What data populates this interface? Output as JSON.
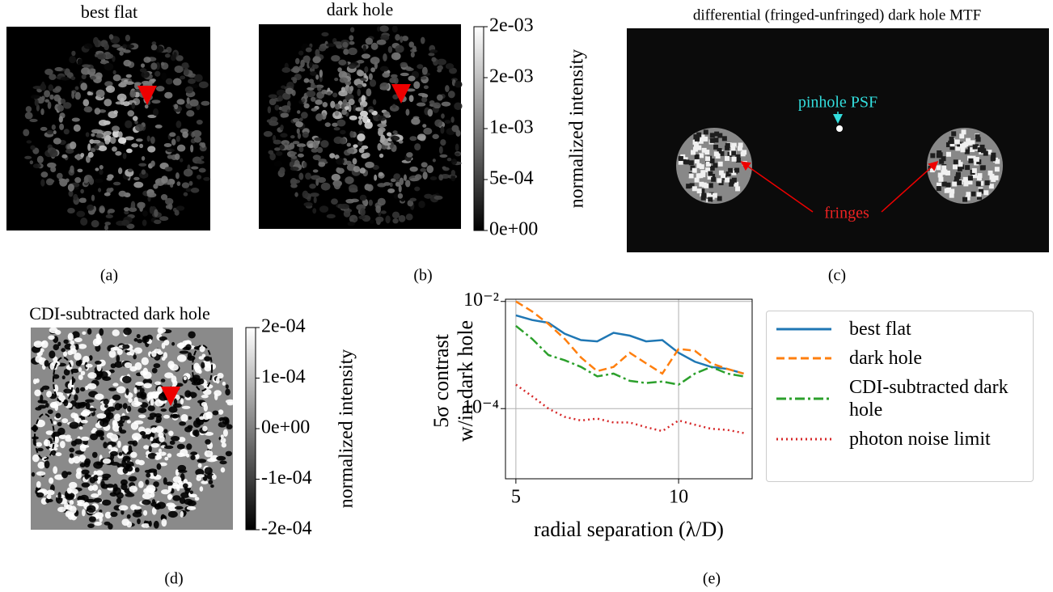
{
  "panels": [
    {
      "caption": "(a)",
      "title": "best flat"
    },
    {
      "caption": "(b)",
      "title": "dark hole",
      "colorbar": {
        "label": "normalized intensity",
        "lim": [
          0,
          0.002
        ],
        "ticks": [
          {
            "value": 0,
            "label": "0e+00"
          },
          {
            "value": 0.0005,
            "label": "5e-04"
          },
          {
            "value": 0.001,
            "label": "1e-03"
          },
          {
            "value": 0.0015,
            "label": "2e-03"
          },
          {
            "value": 0.002,
            "label": "2e-03"
          }
        ]
      }
    },
    {
      "caption": "(c)",
      "title": "differential (fringed-unfringed) dark hole MTF",
      "annotations": [
        "pinhole PSF",
        "fringes"
      ]
    },
    {
      "caption": "(d)",
      "title": "CDI-subtracted dark hole",
      "colorbar": {
        "label": "normalized intensity",
        "lim": [
          -0.0002,
          0.0002
        ],
        "ticks": [
          {
            "value": -0.0002,
            "label": "-2e-04"
          },
          {
            "value": -0.0001,
            "label": "-1e-04"
          },
          {
            "value": 0,
            "label": "0e+00"
          },
          {
            "value": 0.0001,
            "label": "1e-04"
          },
          {
            "value": 0.0002,
            "label": "2e-04"
          }
        ]
      }
    },
    {
      "caption": "(e)"
    }
  ],
  "chart_data": {
    "type": "line",
    "xlabel": "radial separation (λ/D)",
    "ylabel": [
      "5σ contrast",
      "w/in dark hole"
    ],
    "x": [
      5,
      5.5,
      6,
      6.5,
      7,
      7.5,
      8,
      8.5,
      9,
      9.5,
      10,
      10.5,
      11,
      11.5,
      12
    ],
    "series": [
      {
        "name": "best flat",
        "color": "#1f77b4",
        "dash": "solid",
        "values": [
          0.0055,
          0.0045,
          0.004,
          0.0025,
          0.0019,
          0.0018,
          0.0026,
          0.0023,
          0.0018,
          0.0019,
          0.0011,
          0.00075,
          0.0006,
          0.00055,
          0.00045
        ]
      },
      {
        "name": "dark hole",
        "color": "#ff7f0e",
        "dash": "dashed",
        "values": [
          0.01,
          0.0065,
          0.0038,
          0.002,
          0.0009,
          0.0005,
          0.0006,
          0.0011,
          0.0007,
          0.00045,
          0.0013,
          0.0012,
          0.0007,
          0.00055,
          0.00045
        ]
      },
      {
        "name": "CDI-subtracted dark hole",
        "color": "#2ca02c",
        "dash": "dashdot",
        "values": [
          0.0035,
          0.002,
          0.001,
          0.0008,
          0.0006,
          0.0004,
          0.00045,
          0.00033,
          0.0003,
          0.00032,
          0.00028,
          0.00045,
          0.0006,
          0.00045,
          0.0004
        ]
      },
      {
        "name": "photon noise limit",
        "color": "#d62728",
        "dash": "dotted",
        "values": [
          0.00028,
          0.00017,
          0.0001,
          7e-05,
          6e-05,
          6.5e-05,
          5.5e-05,
          5.5e-05,
          4.5e-05,
          3.8e-05,
          6e-05,
          5e-05,
          4.2e-05,
          4e-05,
          3.5e-05
        ]
      }
    ],
    "xlim": [
      4.68,
      12.26
    ],
    "ylim": [
      4.9e-06,
      0.011
    ],
    "log_y": true,
    "grid": true,
    "xticks": [
      5,
      10
    ],
    "yticks": [
      {
        "value": 0.0001,
        "label": "10⁻⁴"
      },
      {
        "value": 0.01,
        "label": "10⁻²"
      }
    ]
  }
}
